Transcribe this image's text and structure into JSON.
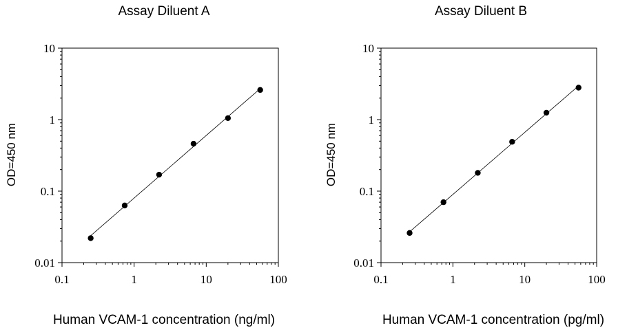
{
  "chart_data": [
    {
      "type": "scatter",
      "title": "Assay Diluent A",
      "xlabel": "Human VCAM-1 concentration (ng/ml)",
      "ylabel": "OD=450 nm",
      "xscale": "log",
      "yscale": "log",
      "xlim": [
        0.1,
        100
      ],
      "ylim": [
        0.01,
        10
      ],
      "xticks": [
        "0.1",
        "1",
        "10",
        "100"
      ],
      "yticks": [
        "0.01",
        "0.1",
        "1",
        "10"
      ],
      "grid": false,
      "legend": "none",
      "series": [
        {
          "x": [
            0.25,
            0.74,
            2.22,
            6.67,
            20,
            56
          ],
          "y": [
            0.022,
            0.063,
            0.17,
            0.46,
            1.05,
            2.6
          ],
          "trendline": "linear (log-log)"
        }
      ]
    },
    {
      "type": "scatter",
      "title": "Assay Diluent B",
      "xlabel": "Human VCAM-1 concentration (pg/ml)",
      "ylabel": "OD=450 nm",
      "xscale": "log",
      "yscale": "log",
      "xlim": [
        0.1,
        100
      ],
      "ylim": [
        0.01,
        10
      ],
      "xticks": [
        "0.1",
        "1",
        "10",
        "100"
      ],
      "yticks": [
        "0.01",
        "0.1",
        "1",
        "10"
      ],
      "grid": false,
      "legend": "none",
      "series": [
        {
          "x": [
            0.25,
            0.74,
            2.22,
            6.67,
            20,
            56
          ],
          "y": [
            0.026,
            0.07,
            0.18,
            0.49,
            1.25,
            2.8
          ],
          "trendline": "linear (log-log)"
        }
      ]
    }
  ]
}
